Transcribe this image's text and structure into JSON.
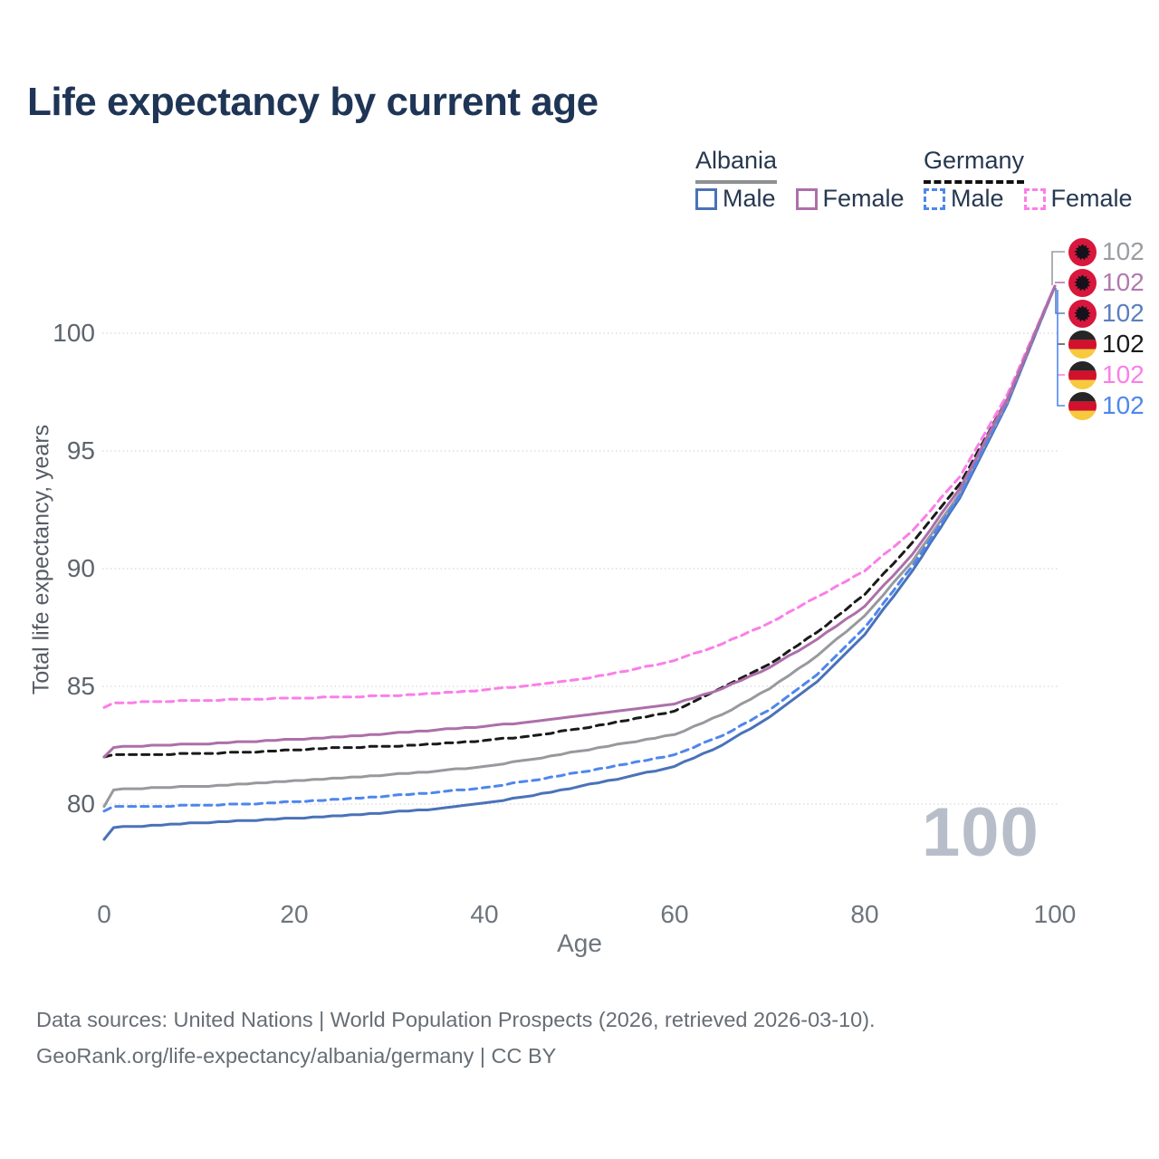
{
  "title": "Life expectancy by current age",
  "legend": {
    "albania": {
      "label": "Albania",
      "male": "Male",
      "female": "Female"
    },
    "germany": {
      "label": "Germany",
      "male": "Male",
      "female": "Female"
    }
  },
  "watermark": "100",
  "footer": {
    "line1": "Data sources: United Nations | World Population Prospects (2026, retrieved 2026-03-10).",
    "line2": "GeoRank.org/life-expectancy/albania/germany | CC BY"
  },
  "end_labels": [
    {
      "label": "102",
      "color": "#9a9da1",
      "flag": "albania",
      "series": "albania-both"
    },
    {
      "label": "102",
      "color": "#b07aad",
      "flag": "albania",
      "series": "albania-female"
    },
    {
      "label": "102",
      "color": "#5b7fbd",
      "flag": "albania",
      "series": "albania-male"
    },
    {
      "label": "102",
      "color": "#1a1a1a",
      "flag": "germany",
      "series": "germany-both"
    },
    {
      "label": "102",
      "color": "#fb7ee8",
      "flag": "germany",
      "series": "germany-female"
    },
    {
      "label": "102",
      "color": "#4f86ee",
      "flag": "germany",
      "series": "germany-male"
    }
  ],
  "chart_data": {
    "type": "line",
    "title": "Life expectancy by current age",
    "xlabel": "Age",
    "ylabel": "Total life expectancy, years",
    "xlim": [
      0,
      100
    ],
    "ylim": [
      78,
      102.5
    ],
    "x_ticks": [
      0,
      20,
      40,
      60,
      80,
      100
    ],
    "y_ticks": [
      100,
      95,
      90,
      85,
      80
    ],
    "grid": "horizontal-dotted",
    "legend_position": "top-right",
    "x": [
      0,
      1,
      5,
      10,
      15,
      20,
      25,
      30,
      35,
      40,
      45,
      50,
      55,
      60,
      65,
      70,
      75,
      80,
      85,
      90,
      95,
      100
    ],
    "series": [
      {
        "name": "Albania Male",
        "country": "Albania",
        "sex": "Male",
        "color": "#4a72b8",
        "dash": "solid",
        "values": [
          78.5,
          79.0,
          79.1,
          79.2,
          79.3,
          79.4,
          79.5,
          79.65,
          79.8,
          80.05,
          80.35,
          80.75,
          81.15,
          81.6,
          82.5,
          83.7,
          85.2,
          87.2,
          89.9,
          93.0,
          97.0,
          102
        ]
      },
      {
        "name": "Albania (both sexes)",
        "country": "Albania",
        "sex": "Both",
        "color": "#97999d",
        "dash": "solid",
        "values": [
          79.9,
          80.6,
          80.7,
          80.75,
          80.85,
          81.0,
          81.1,
          81.25,
          81.4,
          81.6,
          81.9,
          82.25,
          82.6,
          82.95,
          83.8,
          84.9,
          86.3,
          88.0,
          90.3,
          93.2,
          97.1,
          102
        ]
      },
      {
        "name": "Germany Male",
        "country": "Germany",
        "sex": "Male",
        "color": "#4f86ee",
        "dash": "dashed",
        "values": [
          79.7,
          79.9,
          79.9,
          79.95,
          80.0,
          80.1,
          80.2,
          80.35,
          80.5,
          80.7,
          81.0,
          81.35,
          81.7,
          82.1,
          82.9,
          84.0,
          85.5,
          87.5,
          90.1,
          93.1,
          97.1,
          102
        ]
      },
      {
        "name": "Germany (both sexes)",
        "country": "Germany",
        "sex": "Both",
        "color": "#1a1a1a",
        "dash": "dashed",
        "values": [
          82.0,
          82.1,
          82.1,
          82.15,
          82.2,
          82.3,
          82.4,
          82.45,
          82.55,
          82.7,
          82.9,
          83.2,
          83.55,
          83.95,
          84.95,
          85.95,
          87.3,
          88.9,
          91.1,
          93.6,
          97.2,
          102
        ]
      },
      {
        "name": "Germany Female",
        "country": "Germany",
        "sex": "Female",
        "color": "#fb7ee8",
        "dash": "dashed",
        "values": [
          84.1,
          84.3,
          84.35,
          84.4,
          84.45,
          84.5,
          84.55,
          84.6,
          84.7,
          84.85,
          85.05,
          85.3,
          85.65,
          86.1,
          86.8,
          87.7,
          88.8,
          89.9,
          91.6,
          93.9,
          97.4,
          102
        ]
      },
      {
        "name": "Albania Female",
        "country": "Albania",
        "sex": "Female",
        "color": "#ad6fa9",
        "dash": "solid",
        "values": [
          82.0,
          82.4,
          82.5,
          82.55,
          82.65,
          82.75,
          82.85,
          83.0,
          83.15,
          83.3,
          83.5,
          83.75,
          84.0,
          84.25,
          84.9,
          85.8,
          87.0,
          88.4,
          90.6,
          93.4,
          97.2,
          102
        ]
      }
    ],
    "end_value_label": "102",
    "hover_age_indicator": "100"
  }
}
